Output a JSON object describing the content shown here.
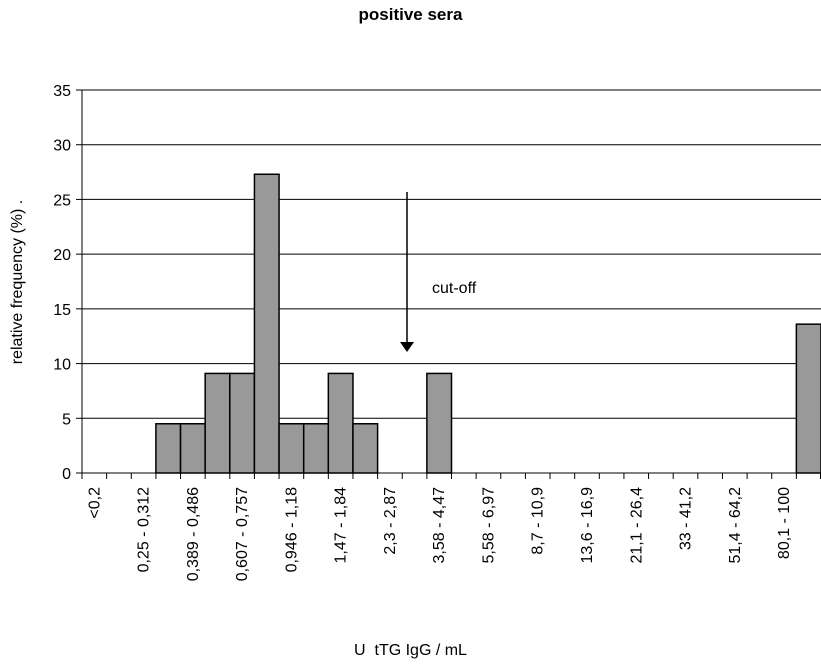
{
  "chart_data": {
    "type": "bar",
    "title": "positive sera",
    "xlabel": "U  tTG IgG / mL",
    "ylabel": "relative frequency (%)    .",
    "ylim": [
      0,
      35
    ],
    "yticks": [
      0,
      5,
      10,
      15,
      20,
      25,
      30,
      35
    ],
    "grid": true,
    "bar_color": "#999999",
    "labeled_categories": [
      "<0,2",
      "0,25 - 0,312",
      "0,389 - 0,486",
      "0,607 - 0,757",
      "0,946 - 1,18",
      "1,47 - 1,84",
      "2,3 - 2,87",
      "3,58 - 4,47",
      "5,58 - 6,97",
      "8,7 - 10,9",
      "13,6 - 16,9",
      "21,1 - 26,4",
      "33 - 41,2",
      "51,4 - 64,2",
      "80,1 - 100"
    ],
    "values": [
      0,
      0,
      0,
      4.5,
      4.5,
      9.1,
      9.1,
      27.3,
      4.5,
      4.5,
      9.1,
      4.5,
      0,
      0,
      9.1,
      0,
      0,
      0,
      0,
      0,
      0,
      0,
      0,
      0,
      0,
      0,
      0,
      0,
      0,
      13.6
    ],
    "annotation": "cut-off"
  }
}
